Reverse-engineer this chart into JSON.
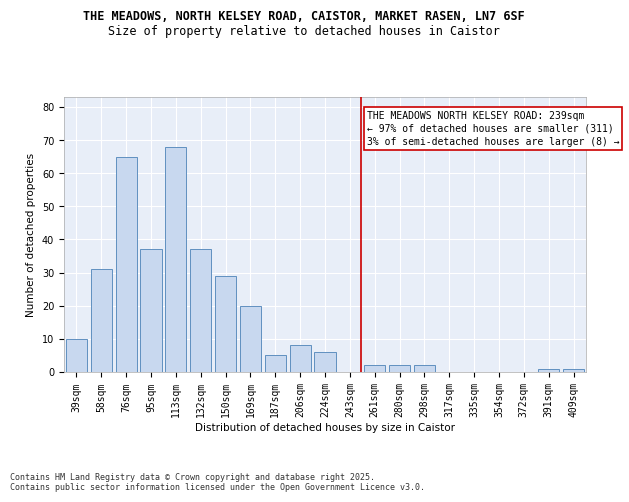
{
  "title1": "THE MEADOWS, NORTH KELSEY ROAD, CAISTOR, MARKET RASEN, LN7 6SF",
  "title2": "Size of property relative to detached houses in Caistor",
  "xlabel": "Distribution of detached houses by size in Caistor",
  "ylabel": "Number of detached properties",
  "categories": [
    "39sqm",
    "58sqm",
    "76sqm",
    "95sqm",
    "113sqm",
    "132sqm",
    "150sqm",
    "169sqm",
    "187sqm",
    "206sqm",
    "224sqm",
    "243sqm",
    "261sqm",
    "280sqm",
    "298sqm",
    "317sqm",
    "335sqm",
    "354sqm",
    "372sqm",
    "391sqm",
    "409sqm"
  ],
  "values": [
    10,
    31,
    65,
    37,
    68,
    37,
    29,
    20,
    5,
    8,
    6,
    0,
    2,
    2,
    2,
    0,
    0,
    0,
    0,
    1,
    1
  ],
  "bar_color": "#c8d8ef",
  "bar_edge_color": "#6090c0",
  "marker_label": "THE MEADOWS NORTH KELSEY ROAD: 239sqm\n← 97% of detached houses are smaller (311)\n3% of semi-detached houses are larger (8) →",
  "marker_color": "#cc0000",
  "ylim": [
    0,
    83
  ],
  "yticks": [
    0,
    10,
    20,
    30,
    40,
    50,
    60,
    70,
    80
  ],
  "bg_color": "#e8eef8",
  "grid_color": "#ffffff",
  "footer": "Contains HM Land Registry data © Crown copyright and database right 2025.\nContains public sector information licensed under the Open Government Licence v3.0.",
  "title_fontsize": 8.5,
  "subtitle_fontsize": 8.5,
  "axis_label_fontsize": 7.5,
  "tick_fontsize": 7,
  "annot_fontsize": 7,
  "footer_fontsize": 6
}
